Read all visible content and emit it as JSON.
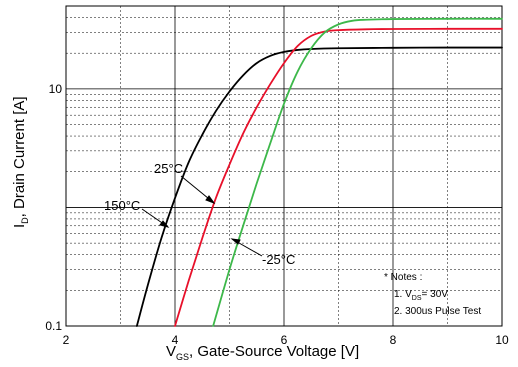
{
  "chart_data": {
    "type": "line",
    "x_scale": "linear",
    "y_scale": "log",
    "xlim": [
      2,
      10
    ],
    "ylim": [
      0.1,
      50
    ],
    "x_ticks": [
      "2",
      "4",
      "6",
      "8",
      "10"
    ],
    "y_ticks": [
      "0.1",
      "10"
    ],
    "xlabel": {
      "main": "V",
      "sub": "GS",
      "rest": ", Gate-Source Voltage [V]"
    },
    "ylabel": {
      "main": "I",
      "sub": "D",
      "rest": ", Drain Current [A]"
    },
    "grid": true,
    "series": [
      {
        "name": "150°C",
        "color": "#000000",
        "x": [
          3.3,
          3.5,
          3.75,
          4.0,
          4.25,
          4.5,
          4.75,
          5.0,
          5.25,
          5.5,
          5.75,
          6.0,
          6.25,
          6.5,
          7.0,
          8.0,
          9.0,
          10.0
        ],
        "y": [
          0.1,
          0.22,
          0.55,
          1.2,
          2.4,
          4.1,
          6.5,
          9.5,
          13.0,
          16.5,
          19.0,
          20.5,
          21.3,
          21.7,
          22.0,
          22.2,
          22.3,
          22.3
        ]
      },
      {
        "name": "25°C",
        "color": "#e8102a",
        "x": [
          4.0,
          4.25,
          4.5,
          4.75,
          5.0,
          5.25,
          5.5,
          5.75,
          6.0,
          6.25,
          6.5,
          6.75,
          7.0,
          7.5,
          8.0,
          9.0,
          10.0
        ],
        "y": [
          0.1,
          0.24,
          0.55,
          1.2,
          2.3,
          4.2,
          7.0,
          11.0,
          16.5,
          23.0,
          28.0,
          30.5,
          31.3,
          31.8,
          32.0,
          32.1,
          32.1
        ]
      },
      {
        "name": "-25°C",
        "color": "#3db84a",
        "x": [
          4.7,
          5.0,
          5.25,
          5.5,
          5.75,
          6.0,
          6.25,
          6.5,
          6.75,
          7.0,
          7.25,
          7.5,
          8.0,
          9.0,
          10.0
        ],
        "y": [
          0.1,
          0.3,
          0.7,
          1.6,
          3.5,
          7.5,
          14.0,
          22.0,
          30.0,
          35.0,
          37.5,
          38.3,
          38.8,
          39.0,
          39.0
        ]
      }
    ],
    "annotations": [
      {
        "text": "25°C"
      },
      {
        "text": "150°C"
      },
      {
        "text": "-25°C"
      }
    ],
    "notes": {
      "title": "* Notes :",
      "line1_prefix": "1. V",
      "line1_sub": "DS",
      "line1_rest": "= 30V",
      "line2": "2. 300us Pulse Test"
    }
  }
}
